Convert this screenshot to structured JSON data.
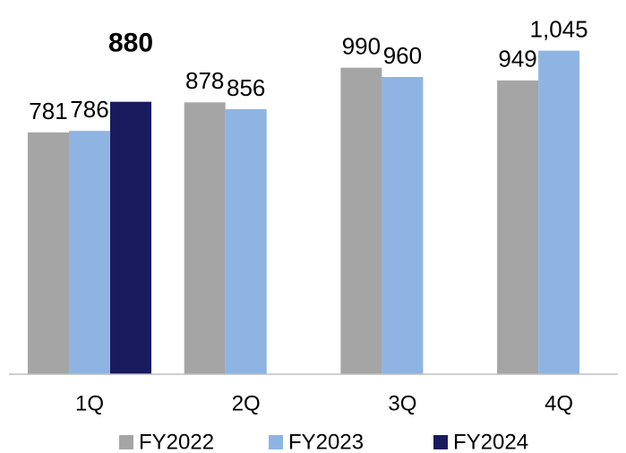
{
  "chart_data": {
    "type": "bar",
    "categories": [
      "1Q",
      "2Q",
      "3Q",
      "4Q"
    ],
    "series": [
      {
        "name": "FY2022",
        "color": "#a5a5a5",
        "label_color": "#000000",
        "values": [
          781,
          878,
          990,
          949
        ],
        "value_labels": [
          "781",
          "878",
          "990",
          "949"
        ]
      },
      {
        "name": "FY2023",
        "color": "#8eb4e3",
        "label_color": "#000000",
        "values": [
          786,
          856,
          960,
          1045
        ],
        "value_labels": [
          "786",
          "856",
          "960",
          "1,045"
        ]
      },
      {
        "name": "FY2024",
        "color": "#1a1a5e",
        "label_color": "#ff0000",
        "values": [
          880,
          null,
          null,
          null
        ],
        "value_labels": [
          "880",
          null,
          null,
          null
        ]
      }
    ],
    "ylim": [
      0,
      1200
    ],
    "legend": "bottom"
  }
}
